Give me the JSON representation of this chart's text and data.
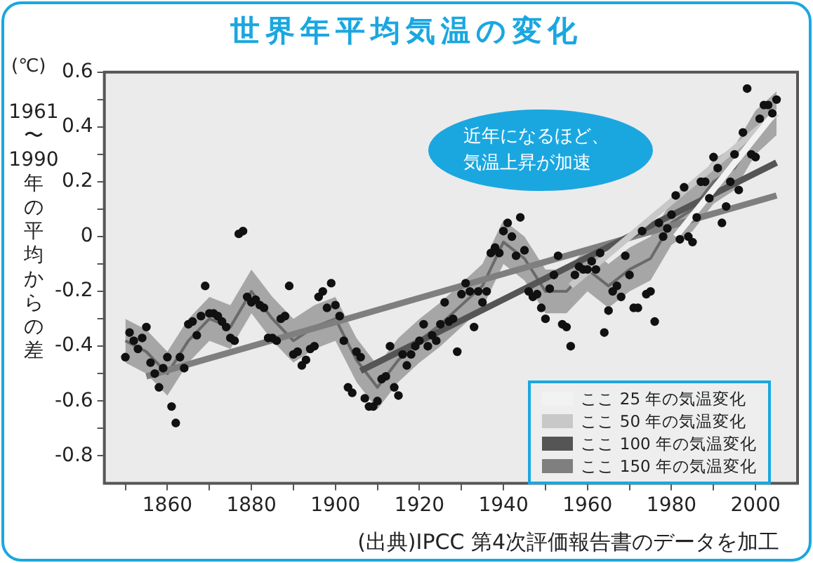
{
  "chart_data": {
    "type": "scatter",
    "title": "世界年平均気温の変化",
    "ylabel": "1961〜1990年の平均からの差",
    "annotations": [
      "(℃)",
      "近年になるほど、気温上昇が加速",
      "(出典)IPCC 第4次評価報告書のデータを加工"
    ],
    "xlim": [
      1845,
      2010
    ],
    "xticks": [
      {
        "value": 1850,
        "label": null
      },
      1860,
      {
        "value": 1870,
        "label": null
      },
      1880,
      {
        "value": 1890,
        "label": null
      },
      1900,
      {
        "value": 1910,
        "label": null
      },
      1920,
      {
        "value": 1930,
        "label": null
      },
      1940,
      {
        "value": 1950,
        "label": null
      },
      1960,
      {
        "value": 1970,
        "label": null
      },
      1980,
      {
        "value": 1990,
        "label": null
      },
      2000
    ],
    "ylim": [
      -0.9,
      0.6
    ],
    "yticks": [
      -0.8,
      {
        "value": -0.7,
        "label": null
      },
      -0.6,
      {
        "value": -0.5,
        "label": null
      },
      -0.4,
      {
        "value": -0.3,
        "label": null
      },
      -0.2,
      {
        "value": -0.1,
        "label": null
      },
      0,
      {
        "value": 0.1,
        "label": null
      },
      0.2,
      {
        "value": 0.3,
        "label": null
      },
      0.4,
      {
        "value": 0.5,
        "label": null
      },
      0.6
    ],
    "legend": "bottom right",
    "series": [
      {
        "marker": "circle",
        "color": "#111111",
        "x": [
          1850,
          1851,
          1852,
          1853,
          1854,
          1855,
          1856,
          1857,
          1858,
          1859,
          1860,
          1861,
          1862,
          1863,
          1864,
          1865,
          1866,
          1867,
          1868,
          1869,
          1870,
          1871,
          1872,
          1873,
          1874,
          1875,
          1876,
          1877,
          1878,
          1879,
          1880,
          1881,
          1882,
          1883,
          1884,
          1885,
          1886,
          1887,
          1888,
          1889,
          1890,
          1891,
          1892,
          1893,
          1894,
          1895,
          1896,
          1897,
          1898,
          1899,
          1900,
          1901,
          1902,
          1903,
          1904,
          1905,
          1906,
          1907,
          1908,
          1909,
          1910,
          1911,
          1912,
          1913,
          1914,
          1915,
          1916,
          1917,
          1918,
          1919,
          1920,
          1921,
          1922,
          1923,
          1924,
          1925,
          1926,
          1927,
          1928,
          1929,
          1930,
          1931,
          1932,
          1933,
          1934,
          1935,
          1936,
          1937,
          1938,
          1939,
          1940,
          1941,
          1942,
          1943,
          1944,
          1945,
          1946,
          1947,
          1948,
          1949,
          1950,
          1951,
          1952,
          1953,
          1954,
          1955,
          1956,
          1957,
          1958,
          1959,
          1960,
          1961,
          1962,
          1963,
          1964,
          1965,
          1966,
          1967,
          1968,
          1969,
          1970,
          1971,
          1972,
          1973,
          1974,
          1975,
          1976,
          1977,
          1978,
          1979,
          1980,
          1981,
          1982,
          1983,
          1984,
          1985,
          1986,
          1987,
          1988,
          1989,
          1990,
          1991,
          1992,
          1993,
          1994,
          1995,
          1996,
          1997,
          1998,
          1999,
          2000,
          2001,
          2002,
          2003,
          2004,
          2005
        ],
        "values": [
          -0.44,
          -0.35,
          -0.38,
          -0.41,
          -0.37,
          -0.33,
          -0.46,
          -0.5,
          -0.55,
          -0.48,
          -0.44,
          -0.62,
          -0.68,
          -0.44,
          -0.48,
          -0.32,
          -0.31,
          -0.36,
          -0.29,
          -0.18,
          -0.28,
          -0.28,
          -0.29,
          -0.31,
          -0.33,
          -0.37,
          -0.38,
          0.01,
          0.02,
          -0.22,
          -0.24,
          -0.23,
          -0.25,
          -0.26,
          -0.37,
          -0.37,
          -0.38,
          -0.3,
          -0.29,
          -0.18,
          -0.43,
          -0.42,
          -0.47,
          -0.45,
          -0.41,
          -0.4,
          -0.22,
          -0.2,
          -0.26,
          -0.17,
          -0.25,
          -0.29,
          -0.38,
          -0.55,
          -0.57,
          -0.42,
          -0.44,
          -0.59,
          -0.62,
          -0.62,
          -0.6,
          -0.52,
          -0.51,
          -0.4,
          -0.55,
          -0.58,
          -0.43,
          -0.47,
          -0.43,
          -0.4,
          -0.38,
          -0.32,
          -0.4,
          -0.36,
          -0.38,
          -0.32,
          -0.24,
          -0.31,
          -0.3,
          -0.42,
          -0.21,
          -0.17,
          -0.2,
          -0.33,
          -0.2,
          -0.24,
          -0.2,
          -0.06,
          -0.04,
          -0.06,
          0.02,
          0.05,
          0,
          -0.07,
          0.07,
          -0.05,
          -0.2,
          -0.22,
          -0.21,
          -0.26,
          -0.3,
          -0.19,
          -0.14,
          -0.07,
          -0.32,
          -0.33,
          -0.4,
          -0.14,
          -0.11,
          -0.12,
          -0.12,
          -0.09,
          -0.12,
          -0.06,
          -0.35,
          -0.27,
          -0.2,
          -0.18,
          -0.22,
          -0.07,
          -0.14,
          -0.26,
          -0.26,
          0.02,
          -0.21,
          -0.2,
          -0.31,
          0.05,
          0,
          0.03,
          0.08,
          0.15,
          -0.01,
          0.18,
          0,
          -0.02,
          0.07,
          0.2,
          0.2,
          0.14,
          0.29,
          0.25,
          0.05,
          0.11,
          0.2,
          0.3,
          0.17,
          0.38,
          0.54,
          0.3,
          0.29,
          0.43,
          0.48,
          0.48,
          0.45,
          0.5
        ]
      },
      {
        "type": "line",
        "marker": "none",
        "color": "#6a6a6a",
        "x": [
          1850,
          1855,
          1860,
          1865,
          1870,
          1875,
          1880,
          1885,
          1890,
          1895,
          1900,
          1905,
          1910,
          1915,
          1920,
          1925,
          1930,
          1935,
          1940,
          1945,
          1950,
          1955,
          1960,
          1965,
          1970,
          1975,
          1980,
          1985,
          1990,
          1995,
          2000,
          2005
        ],
        "values": [
          -0.38,
          -0.42,
          -0.5,
          -0.38,
          -0.3,
          -0.33,
          -0.2,
          -0.3,
          -0.38,
          -0.33,
          -0.3,
          -0.45,
          -0.55,
          -0.45,
          -0.38,
          -0.32,
          -0.25,
          -0.18,
          -0.02,
          -0.08,
          -0.2,
          -0.2,
          -0.12,
          -0.18,
          -0.12,
          -0.08,
          0.05,
          0.1,
          0.2,
          0.25,
          0.38,
          0.45
        ],
        "lower": [
          -0.46,
          -0.5,
          -0.58,
          -0.46,
          -0.38,
          -0.41,
          -0.28,
          -0.38,
          -0.46,
          -0.41,
          -0.38,
          -0.53,
          -0.63,
          -0.53,
          -0.46,
          -0.4,
          -0.33,
          -0.26,
          -0.1,
          -0.16,
          -0.28,
          -0.28,
          -0.2,
          -0.26,
          -0.2,
          -0.16,
          -0.03,
          0.02,
          0.12,
          0.17,
          0.3,
          0.37
        ],
        "upper": [
          -0.3,
          -0.34,
          -0.42,
          -0.3,
          -0.22,
          -0.25,
          -0.12,
          -0.22,
          -0.3,
          -0.25,
          -0.22,
          -0.37,
          -0.47,
          -0.37,
          -0.3,
          -0.24,
          -0.17,
          -0.1,
          0.06,
          0,
          -0.12,
          -0.12,
          -0.04,
          -0.1,
          -0.04,
          0,
          0.13,
          0.18,
          0.28,
          0.33,
          0.46,
          0.53
        ]
      },
      {
        "type": "line",
        "marker": "none",
        "name": "ここ 25 年の気温変化",
        "color": "#f2f2f2",
        "x": [
          1981,
          2005
        ],
        "values": [
          0.0,
          0.46
        ]
      },
      {
        "type": "line",
        "marker": "none",
        "name": "ここ 50 年の気温変化",
        "color": "#c8c8c8",
        "x": [
          1956,
          2005
        ],
        "values": [
          -0.18,
          0.45
        ]
      },
      {
        "type": "line",
        "marker": "none",
        "name": "ここ 100 年の気温変化",
        "color": "#555555",
        "x": [
          1906,
          2005
        ],
        "values": [
          -0.49,
          0.27
        ]
      },
      {
        "type": "line",
        "marker": "none",
        "name": "ここ 150 年の気温変化",
        "color": "#7f7f7f",
        "x": [
          1855,
          2005
        ],
        "values": [
          -0.51,
          0.15
        ]
      }
    ]
  }
}
